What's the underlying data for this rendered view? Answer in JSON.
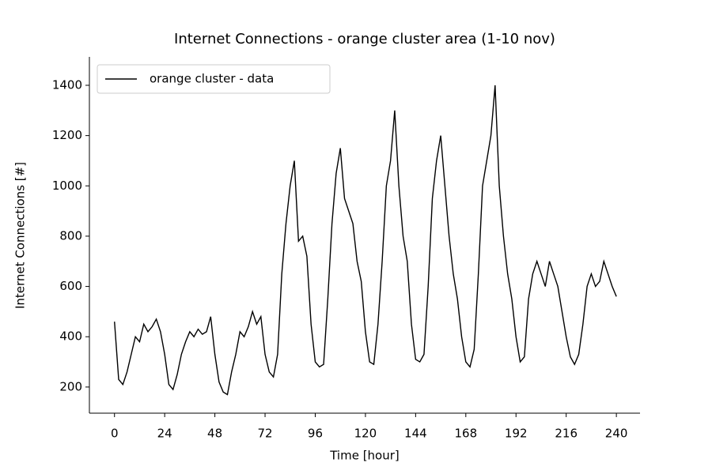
{
  "chart_data": {
    "type": "line",
    "title": "Internet Connections - orange cluster area (1-10 nov)",
    "xlabel": "Time [hour]",
    "ylabel": "Internet Connections [#]",
    "x": [
      0,
      2,
      4,
      6,
      8,
      10,
      12,
      14,
      16,
      18,
      20,
      22,
      24,
      26,
      28,
      30,
      32,
      34,
      36,
      38,
      40,
      42,
      44,
      46,
      48,
      50,
      52,
      54,
      56,
      58,
      60,
      62,
      64,
      66,
      68,
      70,
      72,
      74,
      76,
      78,
      80,
      82,
      84,
      86,
      88,
      90,
      92,
      94,
      96,
      98,
      100,
      102,
      104,
      106,
      108,
      110,
      112,
      114,
      116,
      118,
      120,
      122,
      124,
      126,
      128,
      130,
      132,
      134,
      136,
      138,
      140,
      142,
      144,
      146,
      148,
      150,
      152,
      154,
      156,
      158,
      160,
      162,
      164,
      166,
      168,
      170,
      172,
      174,
      176,
      178,
      180,
      182,
      184,
      186,
      188,
      190,
      192,
      194,
      196,
      198,
      200,
      202,
      204,
      206,
      208,
      210,
      212,
      214,
      216,
      218,
      220,
      222,
      224,
      226,
      228,
      230,
      232,
      234,
      236,
      238,
      240
    ],
    "series": [
      {
        "name": "orange cluster - data",
        "color": "#000000",
        "values": [
          460,
          230,
          210,
          260,
          330,
          400,
          380,
          450,
          420,
          440,
          470,
          420,
          330,
          210,
          190,
          250,
          330,
          380,
          420,
          400,
          430,
          410,
          420,
          480,
          330,
          220,
          180,
          170,
          260,
          330,
          420,
          400,
          440,
          500,
          450,
          480,
          330,
          260,
          240,
          330,
          650,
          850,
          1000,
          1100,
          780,
          800,
          720,
          450,
          300,
          280,
          290,
          550,
          850,
          1050,
          1150,
          950,
          900,
          850,
          700,
          620,
          420,
          300,
          290,
          450,
          700,
          1000,
          1100,
          1300,
          1000,
          800,
          700,
          450,
          310,
          300,
          330,
          600,
          950,
          1100,
          1200,
          1000,
          800,
          650,
          550,
          400,
          300,
          280,
          350,
          650,
          1000,
          1100,
          1200,
          1400,
          1000,
          800,
          650,
          550,
          400,
          300,
          320,
          550,
          650,
          700,
          650,
          600,
          700,
          650,
          600,
          500,
          400,
          320,
          290,
          330,
          450,
          600,
          650,
          600,
          620,
          700,
          650,
          600,
          560
        ]
      }
    ],
    "xlim": [
      -12,
      251.3
    ],
    "ylim": [
      96,
      1513
    ],
    "xticks": [
      0,
      24,
      48,
      72,
      96,
      120,
      144,
      168,
      192,
      216,
      240
    ],
    "yticks": [
      200,
      400,
      600,
      800,
      1000,
      1200,
      1400
    ],
    "legend": "upper left"
  }
}
